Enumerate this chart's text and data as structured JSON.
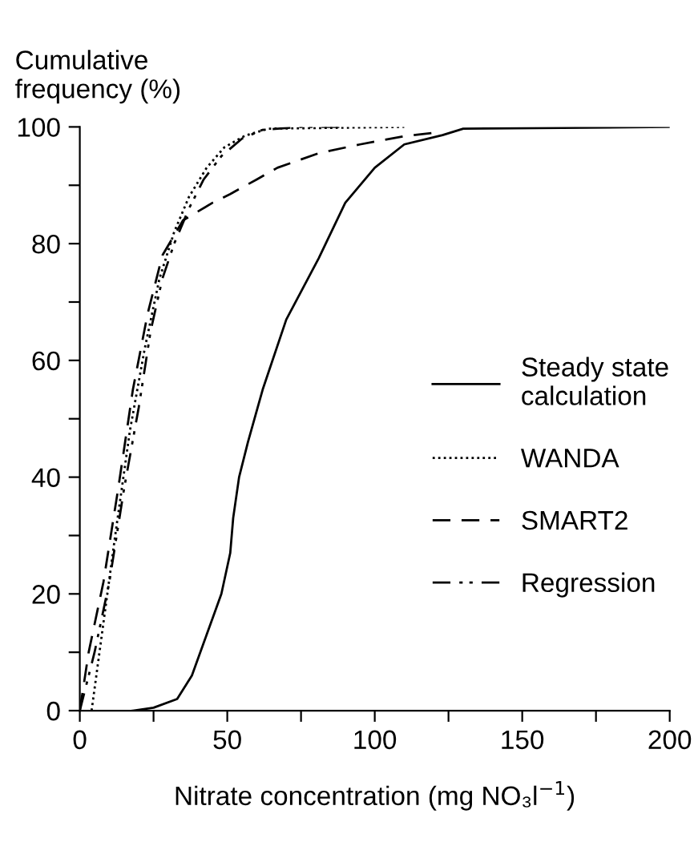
{
  "chart_data": {
    "type": "line",
    "xlabel": "Nitrate concentration (mg NO₃l$^{−1}$)",
    "ylabel": "Cumulative\nfrequency (%)",
    "xlim": [
      0,
      200
    ],
    "ylim": [
      0,
      100
    ],
    "xticks": [
      0,
      {
        "value": 25,
        "label": null
      },
      50,
      {
        "value": 75,
        "label": null
      },
      100,
      {
        "value": 125,
        "label": null
      },
      150,
      {
        "value": 175,
        "label": null
      },
      200
    ],
    "yticks": [
      0,
      {
        "value": 10,
        "label": null
      },
      20,
      {
        "value": 30,
        "label": null
      },
      40,
      {
        "value": 50,
        "label": null
      },
      60,
      {
        "value": 70,
        "label": null
      },
      80,
      {
        "value": 90,
        "label": null
      },
      100
    ],
    "grid": false,
    "legend": "right",
    "marker": "none",
    "series": [
      {
        "name": "Steady state\ncalculation",
        "color": "#000000",
        "line_style": "solid",
        "x": [
          18,
          25,
          33,
          38,
          43,
          48,
          51,
          52,
          54,
          57,
          62,
          70,
          81,
          90,
          100,
          110,
          123,
          130,
          200
        ],
        "values": [
          0,
          0.5,
          2,
          6,
          13,
          20,
          27,
          33,
          40,
          46,
          55,
          67,
          77.5,
          87,
          93,
          97,
          98.6,
          99.7,
          100
        ]
      },
      {
        "name": "WANDA",
        "color": "#000000",
        "line_style": "dotted",
        "x": [
          4,
          8,
          12,
          17,
          22,
          27,
          32,
          37,
          43,
          49,
          56,
          64,
          110
        ],
        "values": [
          0,
          15,
          30,
          48,
          62,
          74,
          82,
          88,
          93,
          96.5,
          98.5,
          99.7,
          100
        ]
      },
      {
        "name": "SMART2",
        "color": "#000000",
        "line_style": "dashed",
        "x": [
          0,
          3,
          8,
          13,
          18,
          23,
          28,
          35,
          45,
          51,
          60,
          67,
          81,
          95,
          110,
          120
        ],
        "values": [
          0,
          10,
          22,
          38,
          55,
          68,
          78,
          84,
          87,
          88.5,
          91,
          93,
          95.5,
          97,
          98.4,
          99
        ]
      },
      {
        "name": "Regression",
        "color": "#000000",
        "line_style": "dashdotdot",
        "x": [
          0,
          5,
          10,
          15,
          20,
          24,
          28,
          32,
          37,
          42,
          48,
          55,
          62,
          75,
          90
        ],
        "values": [
          0,
          10,
          22,
          38,
          52,
          65,
          74,
          80,
          86,
          91,
          95,
          98,
          99.5,
          100,
          100
        ]
      }
    ]
  }
}
